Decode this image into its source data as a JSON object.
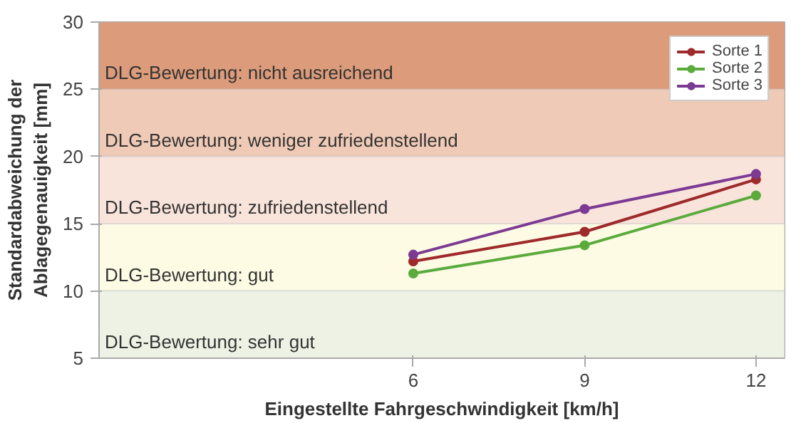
{
  "chart_data": {
    "type": "line",
    "xlabel": "Eingestellte Fahrgeschwindigkeit [km/h]",
    "ylabel": "Standardabweichung der\nAblagegenauigkeit [mm]",
    "x": [
      6,
      9,
      12
    ],
    "xlim": [
      0.5,
      12.5
    ],
    "xticks": [
      6,
      9,
      12
    ],
    "ylim": [
      5,
      30
    ],
    "yticks": [
      5,
      10,
      15,
      20,
      25,
      30
    ],
    "series": [
      {
        "name": "Sorte 1",
        "color": "#9e2a2b",
        "values": [
          12.2,
          14.4,
          18.3
        ]
      },
      {
        "name": "Sorte 2",
        "color": "#5aab3c",
        "values": [
          11.3,
          13.4,
          17.1
        ]
      },
      {
        "name": "Sorte 3",
        "color": "#7b3a93",
        "values": [
          12.7,
          16.1,
          18.7
        ]
      }
    ],
    "bands": [
      {
        "axis": "y",
        "from": 25,
        "to": 30,
        "label": "DLG-Bewertung: nicht ausreichend",
        "color": "#dc9b7a"
      },
      {
        "axis": "y",
        "from": 20,
        "to": 25,
        "label": "DLG-Bewertung: weniger zufriedenstellend",
        "color": "#efcab6"
      },
      {
        "axis": "y",
        "from": 15,
        "to": 20,
        "label": "DLG-Bewertung: zufriedenstellend",
        "color": "#f9e4dc"
      },
      {
        "axis": "y",
        "from": 10,
        "to": 15,
        "label": "DLG-Bewertung: gut",
        "color": "#fdfbe4"
      },
      {
        "axis": "y",
        "from": 5,
        "to": 10,
        "label": "DLG-Bewertung: sehr gut",
        "color": "#edf2e4"
      }
    ],
    "marker": "circle",
    "line_style": "solid",
    "legend": "top right",
    "grid": false
  }
}
